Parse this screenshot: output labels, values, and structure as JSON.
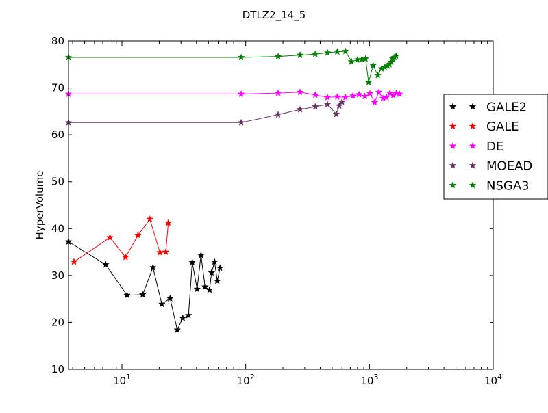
{
  "chart_data": {
    "type": "line",
    "title": "DTLZ2_14_5",
    "xlabel": "",
    "ylabel": "HyperVolume",
    "xscale": "log",
    "xlim": [
      3.7,
      10000
    ],
    "ylim": [
      10,
      80
    ],
    "grid": false,
    "legend_position": "right (outside plot)",
    "x_ticks": [
      {
        "value": 10,
        "base": "10",
        "exp": "1"
      },
      {
        "value": 100,
        "base": "10",
        "exp": "2"
      },
      {
        "value": 1000,
        "base": "10",
        "exp": "3"
      },
      {
        "value": 10000,
        "base": "10",
        "exp": "4"
      }
    ],
    "y_ticks": [
      10,
      20,
      30,
      40,
      50,
      60,
      70,
      80
    ],
    "series": [
      {
        "name": "GALE2",
        "color": "#000000",
        "x": [
          3.7,
          7.4,
          11,
          14.7,
          17.8,
          21,
          24.5,
          28,
          31,
          34.5,
          37,
          40.5,
          43.5,
          47,
          51,
          53,
          56,
          59,
          62
        ],
        "y": [
          37.2,
          32.3,
          25.8,
          25.9,
          31.7,
          23.9,
          25.1,
          18.4,
          20.9,
          21.5,
          32.8,
          27.1,
          34.3,
          27.6,
          26.9,
          30.6,
          32.9,
          28.8,
          31.6
        ]
      },
      {
        "name": "GALE",
        "color": "#ff0000",
        "x": [
          4.1,
          8.0,
          10.7,
          13.5,
          16.8,
          20.3,
          22.6,
          23.7
        ],
        "y": [
          32.9,
          38.1,
          33.9,
          38.6,
          42.0,
          34.9,
          35.0,
          41.2
        ]
      },
      {
        "name": "DE",
        "color": "#ff00ff",
        "x": [
          3.7,
          92,
          183,
          275,
          365,
          458,
          550,
          640,
          735,
          825,
          918,
          1010,
          1100,
          1190,
          1285,
          1375,
          1465,
          1560,
          1650,
          1750
        ],
        "y": [
          68.7,
          68.7,
          68.9,
          69.1,
          68.5,
          68.0,
          68.1,
          68.0,
          68.3,
          68.6,
          68.2,
          68.8,
          66.9,
          69.1,
          67.8,
          68.0,
          68.9,
          68.4,
          68.9,
          68.7
        ]
      },
      {
        "name": "MOEAD",
        "color": "#663366",
        "x": [
          3.7,
          92,
          183,
          275,
          365,
          458,
          540,
          570,
          600
        ],
        "y": [
          62.6,
          62.6,
          64.3,
          65.4,
          66.0,
          66.5,
          64.4,
          66.2,
          67.0
        ]
      },
      {
        "name": "NSGA3",
        "color": "#008000",
        "x": [
          3.7,
          92,
          183,
          275,
          365,
          458,
          550,
          640,
          715,
          800,
          870,
          930,
          985,
          1070,
          1170,
          1250,
          1330,
          1400,
          1450,
          1500,
          1540,
          1590,
          1640
        ],
        "y": [
          76.5,
          76.5,
          76.7,
          77.0,
          77.2,
          77.5,
          77.7,
          77.8,
          75.6,
          76.0,
          76.1,
          76.2,
          71.2,
          74.8,
          72.7,
          74.1,
          74.4,
          74.7,
          75.0,
          75.5,
          76.2,
          76.5,
          76.8
        ]
      }
    ]
  }
}
